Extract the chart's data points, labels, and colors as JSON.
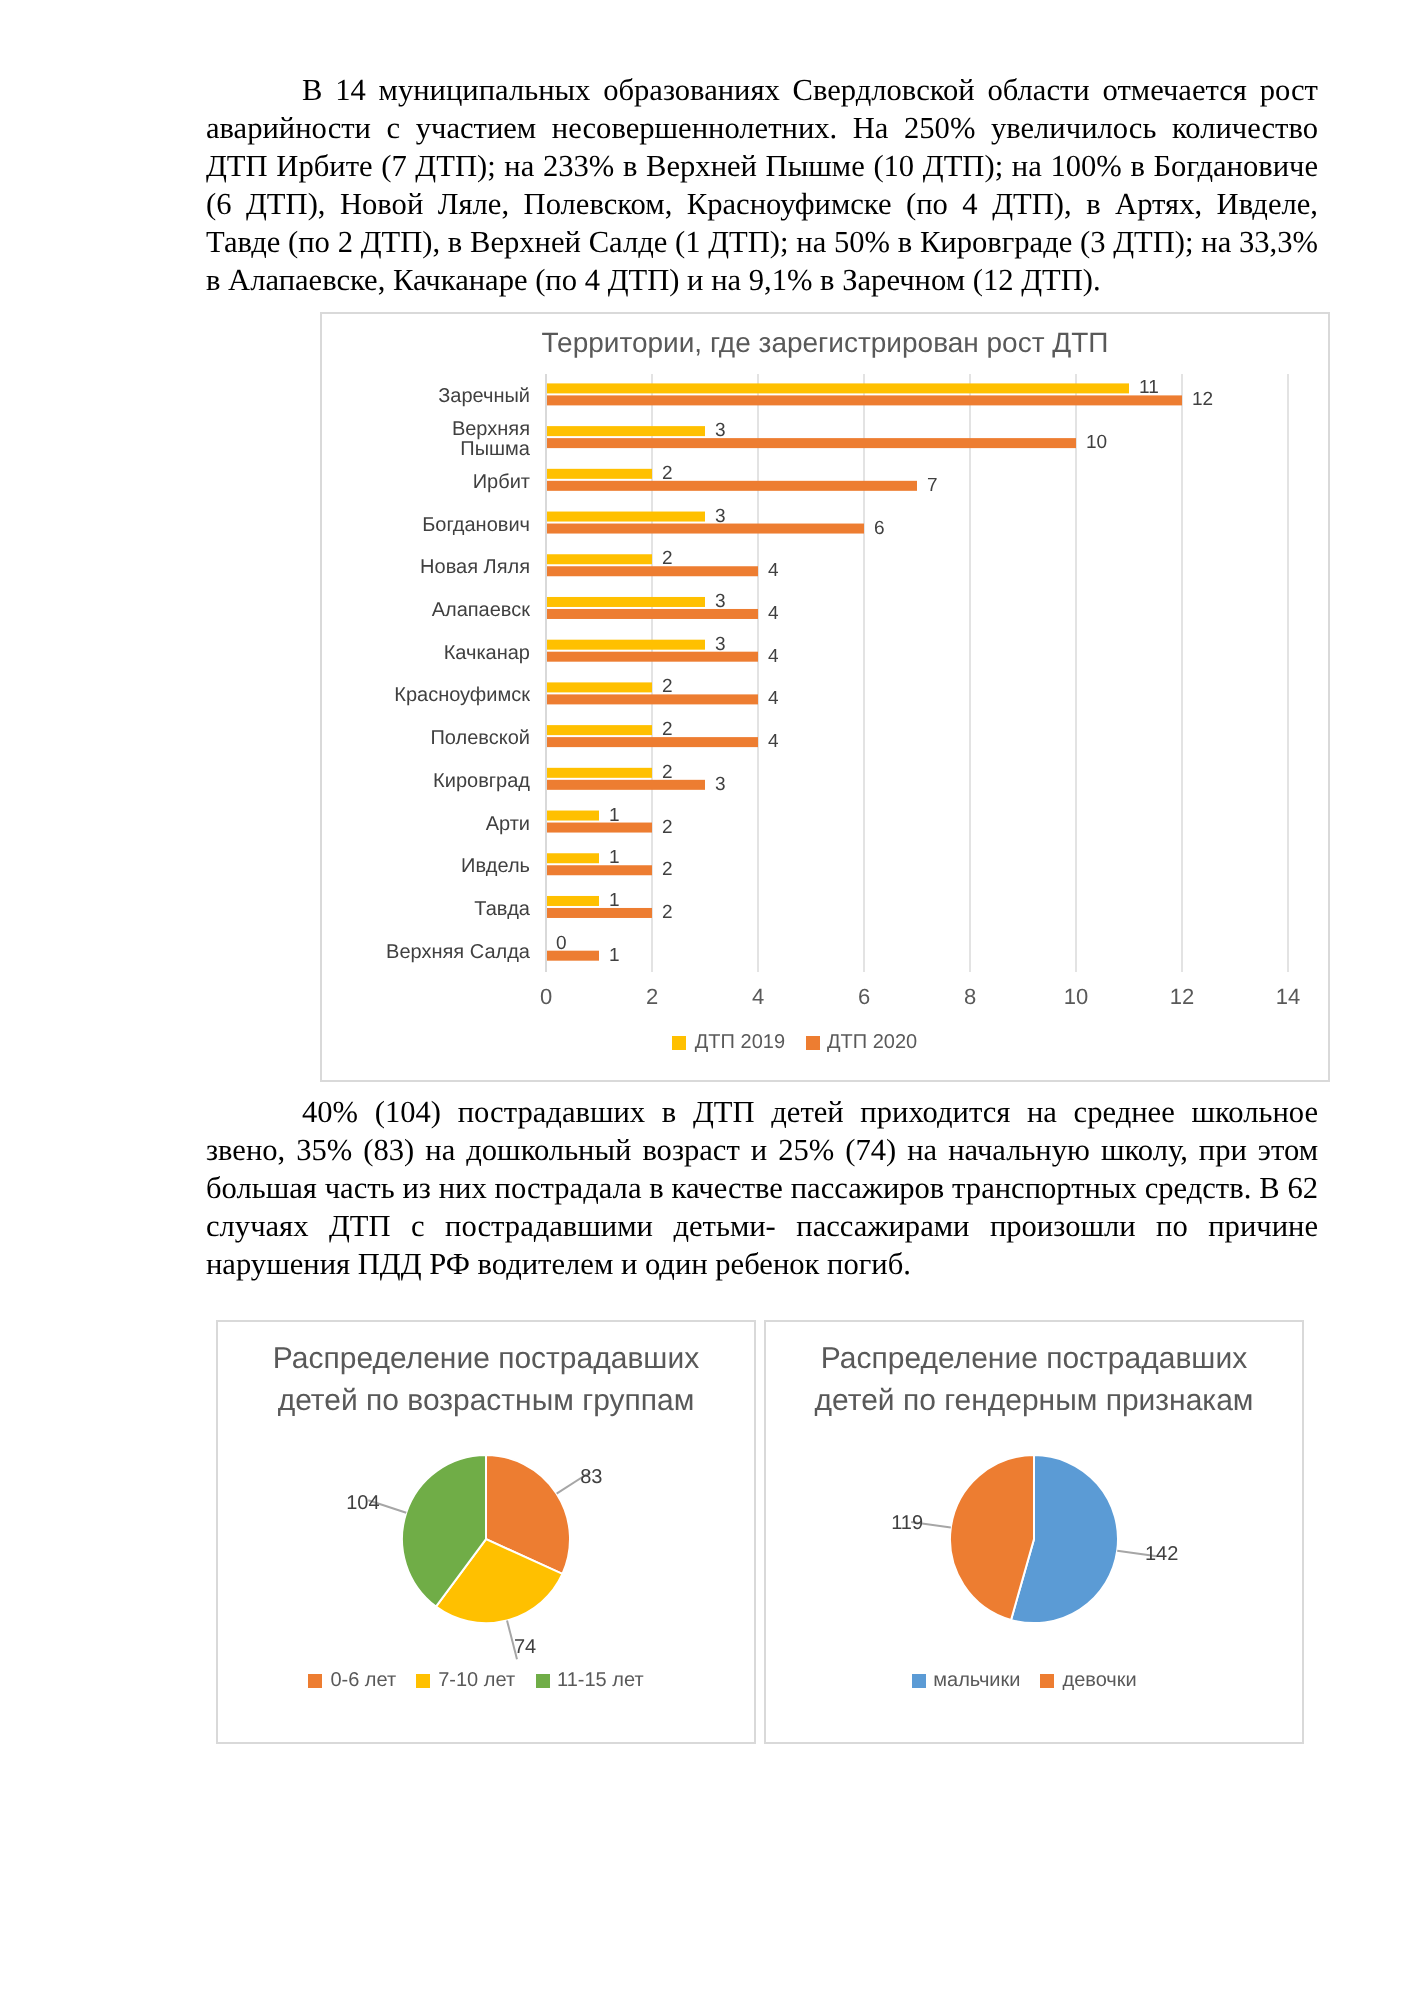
{
  "chart_data": [
    {
      "type": "bar",
      "orientation": "horizontal",
      "title": "Территории, где зарегистрирован рост ДТП",
      "annotations": [
        "В 14 муниципальных образованиях Свердловской области отмечается рост аварийности с участием несовершеннолетних. На 250% увеличилось количество ДТП Ирбите (7 ДТП); на 233% в Верхней Пышме (10 ДТП); на 100% в Богдановиче (6 ДТП), Новой Ляле, Полевском, Красноуфимске (по 4 ДТП), в Артях, Ивделе, Тавде (по 2 ДТП), в Верхней Салде (1 ДТП); на 50% в Кировграде (3 ДТП); на 33,3% в Алапаевске, Качканаре (по 4 ДТП) и на 9,1% в Заречном (12 ДТП)."
      ],
      "categories": [
        "Заречный",
        "Верхняя Пышма",
        "Ирбит",
        "Богданович",
        "Новая Ляля",
        "Алапаевск",
        "Качканар",
        "Красноуфимск",
        "Полевской",
        "Кировград",
        "Арти",
        "Ивдель",
        "Тавда",
        "Верхняя Салда"
      ],
      "series": [
        {
          "name": "ДТП 2019",
          "color": "#ffc000",
          "values": [
            11,
            3,
            2,
            3,
            2,
            3,
            3,
            2,
            2,
            2,
            1,
            1,
            1,
            0
          ]
        },
        {
          "name": "ДТП 2020",
          "color": "#ed7d31",
          "values": [
            12,
            10,
            7,
            6,
            4,
            4,
            4,
            4,
            4,
            3,
            2,
            2,
            2,
            1
          ]
        }
      ],
      "xlim": [
        0,
        14
      ],
      "xticks": [
        0,
        2,
        4,
        6,
        8,
        10,
        12,
        14
      ],
      "grid": "x",
      "legend": "bottom",
      "data_labels": true
    },
    {
      "type": "pie",
      "title": "Распределение пострадавших детей по возрастным группам",
      "annotations": [
        "40% (104) пострадавших в ДТП детей приходится на среднее школьное звено, 35% (83) на дошкольный возраст и 25% (74) на начальную школу, при этом большая часть из них пострадала в качестве пассажиров транспортных средств. В 62 случаях ДТП с пострадавшими детьми- пассажирами произошли по причине нарушения ПДД РФ водителем и один ребенок погиб."
      ],
      "categories": [
        "0-6 лет",
        "7-10 лет",
        "11-15 лет"
      ],
      "values": [
        83,
        74,
        104
      ],
      "colors": [
        "#ed7d31",
        "#ffc000",
        "#70ad47"
      ],
      "legend": "bottom",
      "data_labels": true
    },
    {
      "type": "pie",
      "title": "Распределение пострадавших детей по гендерным признакам",
      "categories": [
        "мальчики",
        "девочки"
      ],
      "values": [
        142,
        119
      ],
      "colors": [
        "#5b9bd5",
        "#ed7d31"
      ],
      "legend": "bottom",
      "data_labels": true
    }
  ]
}
